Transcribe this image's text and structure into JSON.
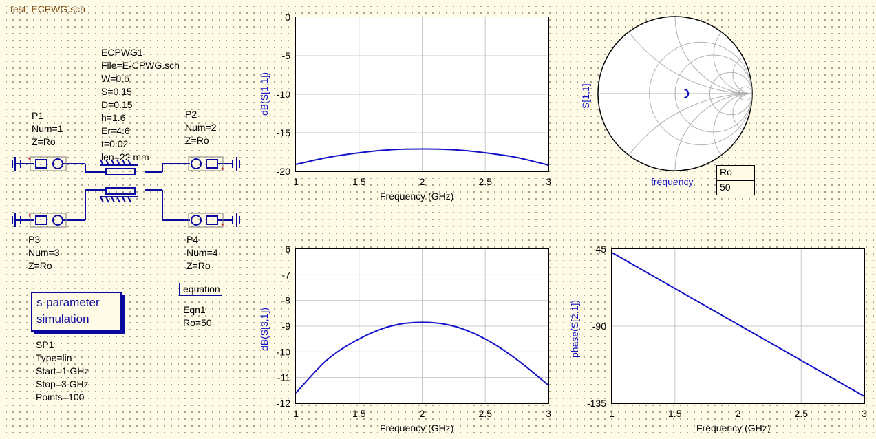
{
  "schematic": {
    "title": "test_ECPWG.sch",
    "component": {
      "name": "ECPWG1",
      "lines": [
        "File=E-CPWG.sch",
        "W=0.6",
        "S=0.15",
        "D=0.15",
        "h=1.6",
        "Er=4.6",
        "t=0.02",
        "len=22 mm"
      ]
    },
    "ports": [
      {
        "name": "P1",
        "num": "Num=1",
        "z": "Z=Ro"
      },
      {
        "name": "P2",
        "num": "Num=2",
        "z": "Z=Ro"
      },
      {
        "name": "P3",
        "num": "Num=3",
        "z": "Z=Ro"
      },
      {
        "name": "P4",
        "num": "Num=4",
        "z": "Z=Ro"
      }
    ],
    "simulation": {
      "box_line1": "s-parameter",
      "box_line2": "simulation",
      "name": "SP1",
      "type": "Type=lin",
      "start": "Start=1 GHz",
      "stop": "Stop=3 GHz",
      "points": "Points=100"
    },
    "equation": {
      "label": "equation",
      "name": "Eqn1",
      "value": "Ro=50"
    }
  },
  "smith": {
    "ylabel": "S[1,1]",
    "xlabel": "frequency",
    "table_header": "Ro",
    "table_value": "50",
    "point": {
      "re": 0.07,
      "im": 0.0
    }
  },
  "chart_data": [
    {
      "type": "line",
      "ylabel": "dB(S[1,1])",
      "xlabel": "Frequency (GHz)",
      "xlim": [
        1,
        3
      ],
      "ylim": [
        -20,
        0
      ],
      "xticks": [
        "1",
        "1.5",
        "2",
        "2.5",
        "3"
      ],
      "yticks": [
        "0",
        "-5",
        "-10",
        "-15",
        "-20"
      ],
      "grid": true,
      "x": [
        1,
        1.25,
        1.5,
        1.75,
        2,
        2.25,
        2.5,
        2.75,
        3
      ],
      "values": [
        -19.1,
        -18.2,
        -17.6,
        -17.2,
        -17.1,
        -17.2,
        -17.6,
        -18.2,
        -19.2
      ]
    },
    {
      "type": "line",
      "ylabel": "dB(S[3,1])",
      "xlabel": "Frequency (GHz)",
      "xlim": [
        1,
        3
      ],
      "ylim": [
        -12,
        -6
      ],
      "xticks": [
        "1",
        "1.5",
        "2",
        "2.5",
        "3"
      ],
      "yticks": [
        "-6",
        "-7",
        "-8",
        "-9",
        "-10",
        "-11",
        "-12"
      ],
      "grid": true,
      "x": [
        1,
        1.25,
        1.5,
        1.75,
        2,
        2.25,
        2.5,
        2.75,
        3
      ],
      "values": [
        -11.6,
        -10.3,
        -9.5,
        -9.0,
        -8.85,
        -9.0,
        -9.5,
        -10.3,
        -11.3
      ]
    },
    {
      "type": "line",
      "ylabel": "phase(S[2,1])",
      "xlabel": "Frequency (GHz)",
      "xlim": [
        1,
        3
      ],
      "ylim": [
        -135,
        -45
      ],
      "xticks": [
        "1",
        "1.5",
        "2",
        "2.5",
        "3"
      ],
      "yticks": [
        "-45",
        "-90",
        "-135"
      ],
      "grid": true,
      "x": [
        1,
        3
      ],
      "values": [
        -47,
        -131
      ]
    }
  ]
}
